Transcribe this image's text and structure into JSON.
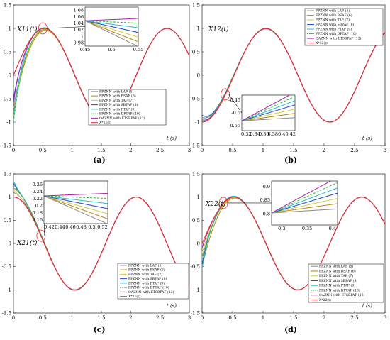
{
  "figure": {
    "legend_entries": [
      "FPZNN with LAF (5)",
      "FPZNN with BSAF (6)",
      "FPZNN with TAF (7)",
      "FPZNN with SBPAF (8)",
      "FPZNN with PTAF (9)",
      "FPZNN with DPTAF (10)",
      "OAZNN with ETSBPAF (12)"
    ],
    "series_colors": [
      "#8a8a8a",
      "#b8860b",
      "#cccc44",
      "#2244cc",
      "#22bbcc",
      "#33bb33",
      "#aa22aa"
    ],
    "ref_color": "#e8303a"
  },
  "chart_data": [
    {
      "type": "line",
      "caption": "(a)",
      "ylabel": "X11(t)",
      "xlabel": "t (s)",
      "ref_legend": "X*11(t)",
      "xlim": [
        0,
        3
      ],
      "ylim": [
        -1.5,
        1.5
      ],
      "xticks": [
        "0",
        "0.5",
        "1",
        "1.5",
        "2",
        "2.5",
        "3"
      ],
      "yticks": [
        "-1.5",
        "-1",
        "-0.5",
        "0",
        "0.5",
        "1",
        "1.5"
      ],
      "reference": {
        "fn": "sin",
        "amp": 1.0,
        "omega": 3,
        "phase": 0
      },
      "initial_values": [
        -0.7,
        -0.8,
        -0.9,
        -0.5,
        -0.95,
        -1.0,
        -0.6
      ],
      "inset": {
        "xlim": [
          0.45,
          0.55
        ],
        "ylim": [
          0.97,
          1.09
        ],
        "xticks": [
          "0.45",
          "0.5",
          "0.55"
        ],
        "yticks": [
          "0.98",
          "1",
          "1.02",
          "1.04",
          "1.06",
          "1.08"
        ]
      }
    },
    {
      "type": "line",
      "caption": "(b)",
      "ylabel": "X12(t)",
      "xlabel": "t (s)",
      "ref_legend": "X*12(t)",
      "xlim": [
        0,
        3
      ],
      "ylim": [
        -1.5,
        1.5
      ],
      "xticks": [
        "0",
        "0.5",
        "1",
        "1.5",
        "2",
        "2.5",
        "3"
      ],
      "yticks": [
        "-1.5",
        "-1",
        "-0.5",
        "0",
        "0.5",
        "1",
        "1.5"
      ],
      "reference": {
        "fn": "sin",
        "amp": 1.0,
        "omega": 3,
        "phase": -1.571
      },
      "initial_values": [
        -0.9,
        -1.0,
        -0.95,
        -0.85,
        -1.0,
        -0.9,
        -0.95
      ],
      "inset": {
        "xlim": [
          0.31,
          0.43
        ],
        "ylim": [
          -0.57,
          -0.43
        ],
        "xticks": [
          "0.32",
          "0.34",
          "0.36",
          "0.38",
          "0.4",
          "0.42"
        ],
        "yticks": [
          "-0.45",
          "-0.5",
          "-0.55"
        ]
      }
    },
    {
      "type": "line",
      "caption": "(c)",
      "ylabel": "X21(t)",
      "xlabel": "t (s)",
      "ref_legend": "X*21(t)",
      "xlim": [
        0,
        3
      ],
      "ylim": [
        -1.5,
        1.5
      ],
      "xticks": [
        "0",
        "0.5",
        "1",
        "1.5",
        "2",
        "2.5",
        "3"
      ],
      "yticks": [
        "-1.5",
        "-1",
        "-0.5",
        "0",
        "0.5",
        "1",
        "1.5"
      ],
      "reference": {
        "fn": "sin",
        "amp": 1.0,
        "omega": 3,
        "phase": 1.571
      },
      "initial_values": [
        1.1,
        1.2,
        1.15,
        1.3,
        1.35,
        1.25,
        1.0
      ],
      "inset": {
        "xlim": [
          0.41,
          0.53
        ],
        "ylim": [
          0.15,
          0.27
        ],
        "xticks": [
          "0.42",
          "0.44",
          "0.46",
          "0.48",
          "0.5",
          "0.52"
        ],
        "yticks": [
          "0.26",
          "0.24",
          "0.22",
          "0.2",
          "0.18",
          "0.16"
        ]
      }
    },
    {
      "type": "line",
      "caption": "(d)",
      "ylabel": "X22(t)",
      "xlabel": "t (s)",
      "ref_legend": "X*22(t)",
      "xlim": [
        0,
        3
      ],
      "ylim": [
        -1.5,
        1.5
      ],
      "xticks": [
        "0",
        "0.5",
        "1",
        "1.5",
        "2",
        "2.5",
        "3"
      ],
      "yticks": [
        "-1.5",
        "-1",
        "-0.5",
        "0",
        "0.5",
        "1",
        "1.5"
      ],
      "reference": {
        "fn": "sin",
        "amp": 1.0,
        "omega": 3,
        "phase": 0
      },
      "initial_values": [
        -0.3,
        -0.5,
        -0.2,
        -0.45,
        -0.55,
        -0.35,
        -0.1
      ],
      "inset": {
        "xlim": [
          0.28,
          0.41
        ],
        "ylim": [
          0.76,
          0.92
        ],
        "xticks": [
          "0.3",
          "0.35",
          "0.4"
        ],
        "yticks": [
          "0.9",
          "0.85",
          "0.8"
        ]
      }
    }
  ]
}
